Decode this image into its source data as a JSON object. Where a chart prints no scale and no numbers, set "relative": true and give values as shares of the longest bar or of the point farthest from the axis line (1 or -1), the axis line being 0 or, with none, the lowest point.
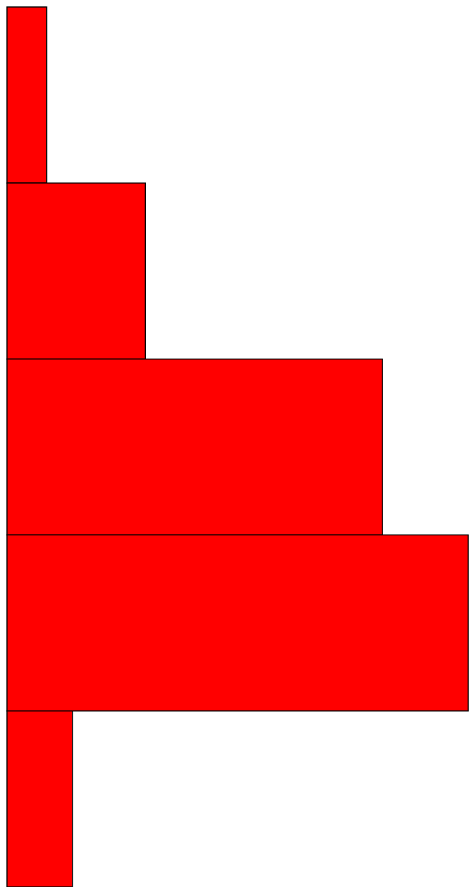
{
  "chart_data": {
    "type": "bar",
    "orientation": "horizontal",
    "relative": true,
    "categories": [
      null,
      null,
      null,
      null,
      null
    ],
    "values": [
      0.086,
      0.3,
      0.814,
      1,
      0.142
    ],
    "color": "#ff0000"
  }
}
